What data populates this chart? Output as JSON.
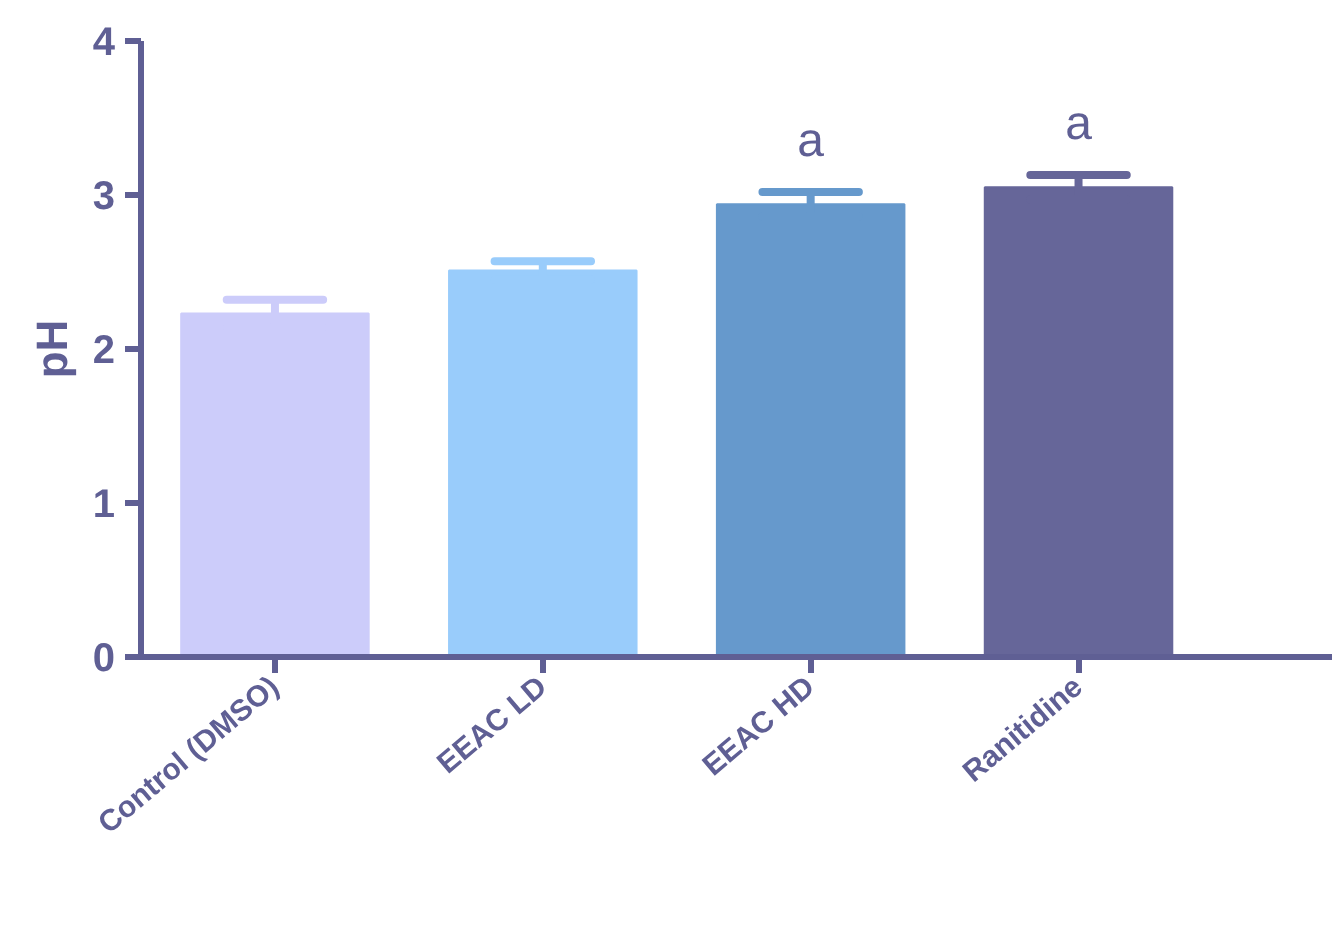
{
  "chart_data": {
    "type": "bar",
    "ylabel": "pH",
    "categories": [
      "Control (DMSO)",
      "EEAC LD",
      "EEAC HD",
      "Ranitidine"
    ],
    "values": [
      2.23,
      2.51,
      2.94,
      3.05
    ],
    "colors": [
      "#ccccfa",
      "#99ccfb",
      "#6699cc",
      "#666699"
    ],
    "errors": [
      0.09,
      0.06,
      0.08,
      0.08
    ],
    "ylim": [
      0,
      4
    ],
    "yticks": [
      0,
      1,
      2,
      3,
      4
    ],
    "grid": false,
    "annotations": [
      {
        "text": "a",
        "x": "EEAC HD",
        "y": 2.94
      },
      {
        "text": "a",
        "x": "Ranitidine",
        "y": 3.05
      }
    ]
  }
}
